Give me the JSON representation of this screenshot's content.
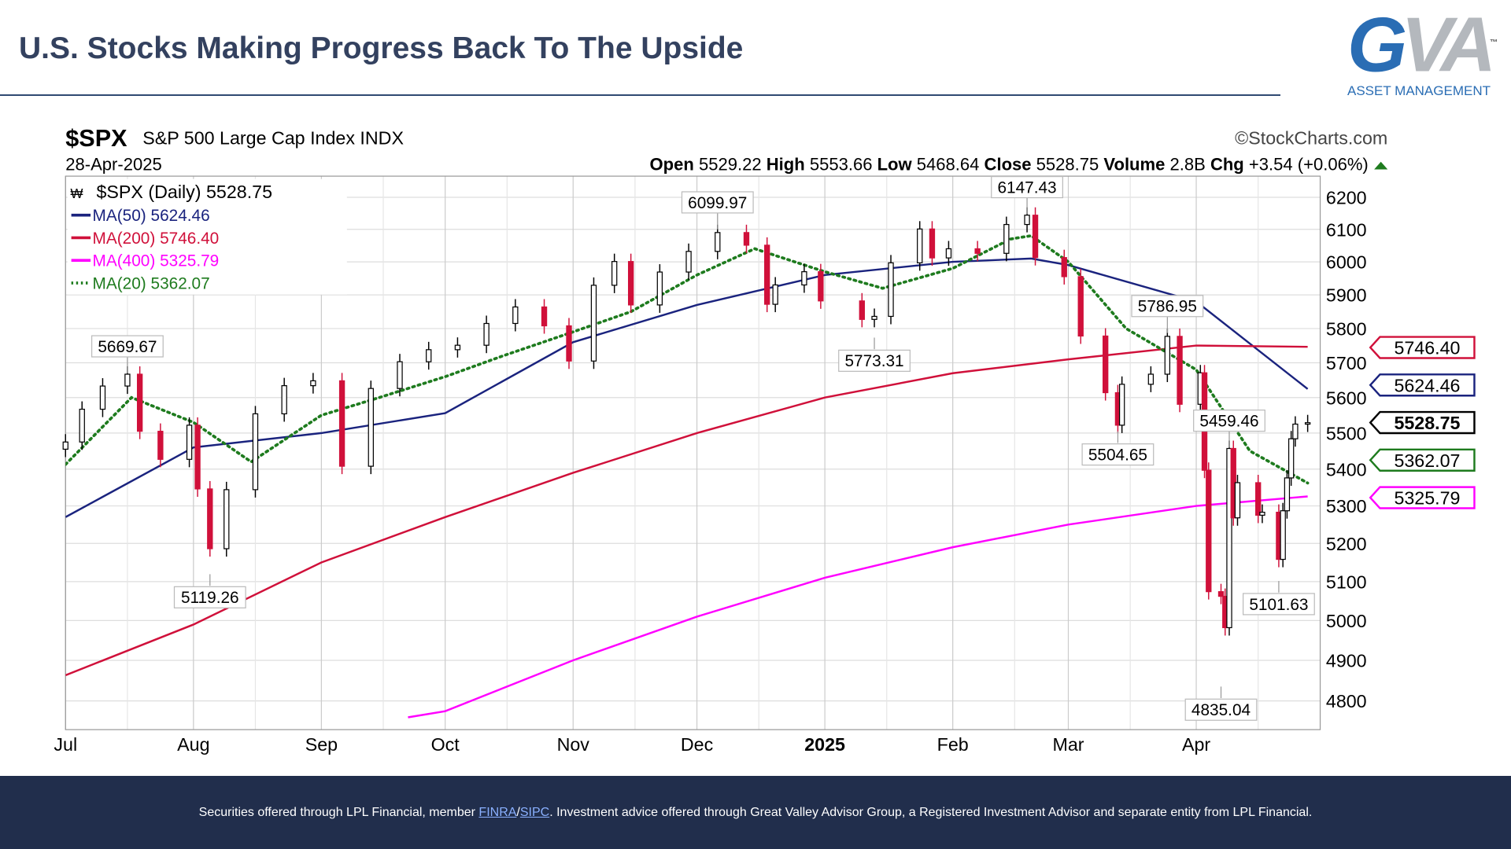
{
  "header": {
    "title": "U.S. Stocks Making Progress Back To The Upside"
  },
  "logo": {
    "mark_g": "G",
    "mark_va": "VA",
    "tm": "™",
    "subtitle": "ASSET MANAGEMENT"
  },
  "footer": {
    "text_before": "Securities offered through LPL Financial, member ",
    "link1": "FINRA",
    "sep": "/",
    "link2": "SIPC",
    "text_after": ". Investment advice offered through Great Valley Advisor Group, a Registered Investment Advisor and separate entity from LPL Financial."
  },
  "chart_data": {
    "type": "candlestick",
    "symbol": "$SPX",
    "name": "S&P 500 Large Cap Index",
    "exchange": "INDX",
    "source": "©StockCharts.com",
    "date": "28-Apr-2025",
    "quote": {
      "open_label": "Open",
      "open": "5529.22",
      "high_label": "High",
      "high": "5553.66",
      "low_label": "Low",
      "low": "5468.64",
      "close_label": "Close",
      "close": "5528.75",
      "volume_label": "Volume",
      "volume": "2.8B",
      "chg_label": "Chg",
      "chg": "+3.54 (+0.06%)"
    },
    "legend": [
      {
        "label": "$SPX (Daily) 5528.75",
        "color": "#000000"
      },
      {
        "label": "MA(50) 5624.46",
        "color": "#1a237e"
      },
      {
        "label": "MA(200) 5746.40",
        "color": "#d0103a"
      },
      {
        "label": "MA(400) 5325.79",
        "color": "#ff00ff"
      },
      {
        "label": "MA(20) 5362.07",
        "color": "#1e7b1e"
      }
    ],
    "y_scale": "log",
    "ylim": [
      4720,
      6260
    ],
    "y_ticks": [
      4800,
      4900,
      5000,
      5100,
      5200,
      5300,
      5400,
      5500,
      5600,
      5700,
      5800,
      5900,
      6000,
      6100,
      6200
    ],
    "x_ticks": [
      {
        "date": "2024-07-01",
        "label": "Jul"
      },
      {
        "date": "2024-08-01",
        "label": "Aug"
      },
      {
        "date": "2024-09-01",
        "label": "Sep"
      },
      {
        "date": "2024-10-01",
        "label": "Oct"
      },
      {
        "date": "2024-11-01",
        "label": "Nov"
      },
      {
        "date": "2024-12-01",
        "label": "Dec"
      },
      {
        "date": "2025-01-01",
        "label": "2025"
      },
      {
        "date": "2025-02-01",
        "label": "Feb"
      },
      {
        "date": "2025-03-01",
        "label": "Mar"
      },
      {
        "date": "2025-04-01",
        "label": "Apr"
      }
    ],
    "xlim": [
      "2024-07-01",
      "2025-04-30"
    ],
    "grid": true,
    "prices": [
      [
        "2024-07-01",
        5475
      ],
      [
        "2024-07-05",
        5567
      ],
      [
        "2024-07-10",
        5633
      ],
      [
        "2024-07-16",
        5667
      ],
      [
        "2024-07-19",
        5505
      ],
      [
        "2024-07-24",
        5427
      ],
      [
        "2024-07-31",
        5522
      ],
      [
        "2024-08-02",
        5346
      ],
      [
        "2024-08-05",
        5186
      ],
      [
        "2024-08-09",
        5344
      ],
      [
        "2024-08-16",
        5554
      ],
      [
        "2024-08-23",
        5634
      ],
      [
        "2024-08-30",
        5648
      ],
      [
        "2024-09-06",
        5408
      ],
      [
        "2024-09-13",
        5626
      ],
      [
        "2024-09-20",
        5703
      ],
      [
        "2024-09-27",
        5738
      ],
      [
        "2024-10-04",
        5751
      ],
      [
        "2024-10-11",
        5815
      ],
      [
        "2024-10-18",
        5864
      ],
      [
        "2024-10-25",
        5808
      ],
      [
        "2024-10-31",
        5705
      ],
      [
        "2024-11-06",
        5929
      ],
      [
        "2024-11-11",
        6001
      ],
      [
        "2024-11-15",
        5870
      ],
      [
        "2024-11-22",
        5969
      ],
      [
        "2024-11-29",
        6032
      ],
      [
        "2024-12-06",
        6090
      ],
      [
        "2024-12-13",
        6051
      ],
      [
        "2024-12-18",
        5872
      ],
      [
        "2024-12-20",
        5930
      ],
      [
        "2024-12-27",
        5970
      ],
      [
        "2024-12-31",
        5882
      ],
      [
        "2025-01-10",
        5827
      ],
      [
        "2025-01-13",
        5836
      ],
      [
        "2025-01-17",
        5997
      ],
      [
        "2025-01-24",
        6101
      ],
      [
        "2025-01-27",
        6012
      ],
      [
        "2025-01-31",
        6040
      ],
      [
        "2025-02-07",
        6026
      ],
      [
        "2025-02-14",
        6115
      ],
      [
        "2025-02-19",
        6144
      ],
      [
        "2025-02-21",
        6013
      ],
      [
        "2025-02-28",
        5955
      ],
      [
        "2025-03-04",
        5778
      ],
      [
        "2025-03-10",
        5614
      ],
      [
        "2025-03-13",
        5522
      ],
      [
        "2025-03-14",
        5638
      ],
      [
        "2025-03-21",
        5667
      ],
      [
        "2025-03-25",
        5777
      ],
      [
        "2025-03-28",
        5581
      ],
      [
        "2025-04-02",
        5671
      ],
      [
        "2025-04-03",
        5397
      ],
      [
        "2025-04-04",
        5074
      ],
      [
        "2025-04-07",
        5062
      ],
      [
        "2025-04-08",
        4982
      ],
      [
        "2025-04-09",
        5457
      ],
      [
        "2025-04-10",
        5268
      ],
      [
        "2025-04-11",
        5363
      ],
      [
        "2025-04-16",
        5275
      ],
      [
        "2025-04-17",
        5283
      ],
      [
        "2025-04-21",
        5158
      ],
      [
        "2025-04-22",
        5287
      ],
      [
        "2025-04-23",
        5376
      ],
      [
        "2025-04-24",
        5484
      ],
      [
        "2025-04-25",
        5525
      ],
      [
        "2025-04-28",
        5529
      ]
    ],
    "moving_averages": [
      {
        "name": "MA(50)",
        "color": "#1a237e",
        "dotted": false,
        "points": [
          [
            "2024-07-01",
            5270
          ],
          [
            "2024-08-01",
            5460
          ],
          [
            "2024-09-01",
            5500
          ],
          [
            "2024-10-01",
            5556
          ],
          [
            "2024-11-01",
            5760
          ],
          [
            "2024-12-01",
            5870
          ],
          [
            "2025-01-01",
            5960
          ],
          [
            "2025-02-01",
            6000
          ],
          [
            "2025-02-20",
            6010
          ],
          [
            "2025-03-01",
            5990
          ],
          [
            "2025-04-01",
            5880
          ],
          [
            "2025-04-28",
            5624.46
          ]
        ]
      },
      {
        "name": "MA(200)",
        "color": "#d0103a",
        "dotted": false,
        "points": [
          [
            "2024-07-01",
            4863
          ],
          [
            "2024-08-01",
            4990
          ],
          [
            "2024-09-01",
            5150
          ],
          [
            "2024-10-01",
            5270
          ],
          [
            "2024-11-01",
            5390
          ],
          [
            "2024-12-01",
            5500
          ],
          [
            "2025-01-01",
            5600
          ],
          [
            "2025-02-01",
            5670
          ],
          [
            "2025-03-01",
            5710
          ],
          [
            "2025-04-01",
            5750
          ],
          [
            "2025-04-28",
            5746.4
          ]
        ]
      },
      {
        "name": "MA(400)",
        "color": "#ff00ff",
        "dotted": false,
        "points": [
          [
            "2024-09-22",
            4760
          ],
          [
            "2024-10-01",
            4775
          ],
          [
            "2024-11-01",
            4900
          ],
          [
            "2024-12-01",
            5010
          ],
          [
            "2025-01-01",
            5110
          ],
          [
            "2025-02-01",
            5190
          ],
          [
            "2025-03-01",
            5250
          ],
          [
            "2025-04-01",
            5300
          ],
          [
            "2025-04-28",
            5325.79
          ]
        ]
      },
      {
        "name": "MA(20)",
        "color": "#1e7b1e",
        "dotted": true,
        "points": [
          [
            "2024-07-01",
            5413
          ],
          [
            "2024-07-17",
            5600
          ],
          [
            "2024-08-01",
            5530
          ],
          [
            "2024-08-15",
            5420
          ],
          [
            "2024-09-01",
            5550
          ],
          [
            "2024-09-15",
            5600
          ],
          [
            "2024-10-01",
            5660
          ],
          [
            "2024-10-15",
            5720
          ],
          [
            "2024-11-01",
            5790
          ],
          [
            "2024-11-15",
            5850
          ],
          [
            "2024-12-01",
            5960
          ],
          [
            "2024-12-15",
            6040
          ],
          [
            "2025-01-01",
            5970
          ],
          [
            "2025-01-15",
            5920
          ],
          [
            "2025-02-01",
            5980
          ],
          [
            "2025-02-15",
            6070
          ],
          [
            "2025-02-20",
            6080
          ],
          [
            "2025-03-01",
            6000
          ],
          [
            "2025-03-15",
            5800
          ],
          [
            "2025-04-01",
            5680
          ],
          [
            "2025-04-14",
            5450
          ],
          [
            "2025-04-28",
            5362.07
          ]
        ]
      }
    ],
    "annotations": [
      {
        "date": "2024-07-16",
        "value": 5669.67,
        "label": "5669.67",
        "pos": "above"
      },
      {
        "date": "2024-08-05",
        "value": 5119.26,
        "label": "5119.26",
        "pos": "below"
      },
      {
        "date": "2024-12-06",
        "value": 6099.97,
        "label": "6099.97",
        "pos": "above"
      },
      {
        "date": "2025-01-13",
        "value": 5773.31,
        "label": "5773.31",
        "pos": "below"
      },
      {
        "date": "2025-02-19",
        "value": 6147.43,
        "label": "6147.43",
        "pos": "above"
      },
      {
        "date": "2025-03-25",
        "value": 5786.95,
        "label": "5786.95",
        "pos": "above"
      },
      {
        "date": "2025-03-13",
        "value": 5504.65,
        "label": "5504.65",
        "pos": "below"
      },
      {
        "date": "2025-04-09",
        "value": 5459.46,
        "label": "5459.46",
        "pos": "above"
      },
      {
        "date": "2025-04-07",
        "value": 4835.04,
        "label": "4835.04",
        "pos": "below"
      },
      {
        "date": "2025-04-21",
        "value": 5101.63,
        "label": "5101.63",
        "pos": "below"
      }
    ],
    "right_labels": [
      {
        "value": 5746.4,
        "label": "5746.40",
        "color": "#d0103a",
        "bold": false
      },
      {
        "value": 5624.46,
        "label": "5624.46",
        "color": "#1a237e",
        "bold": false
      },
      {
        "value": 5528.75,
        "label": "5528.75",
        "color": "#000000",
        "bold": true
      },
      {
        "value": 5362.07,
        "label": "5362.07",
        "color": "#1e7b1e",
        "bold": false
      },
      {
        "value": 5325.79,
        "label": "5325.79",
        "color": "#ff00ff",
        "bold": false
      }
    ]
  }
}
